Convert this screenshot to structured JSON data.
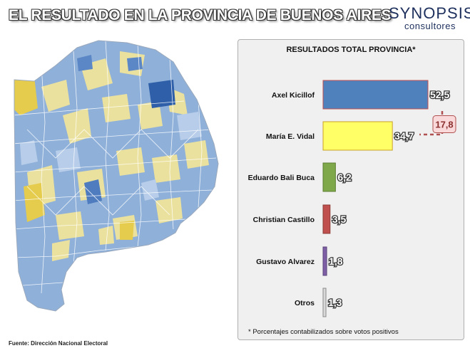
{
  "header": {
    "title": "EL RESULTADO EN LA PROVINCIA DE BUENOS AIRES",
    "logo_main": "SYNOPSIS",
    "logo_sub": "consultores"
  },
  "source": "Fuente: Dirección Nacional Electoral",
  "colors": {
    "kicillof": "#4f81bd",
    "vidal": "#ffff66",
    "bali_buca": "#7fa84a",
    "castillo": "#c0504d",
    "alvarez": "#7e5fa5",
    "otros": "#d9d9d9",
    "map_blue": "#8fb0d9",
    "map_yellow": "#ebe19f",
    "map_outline": "#ffffff",
    "difference_box": "#f9d9d9",
    "difference_line": "#b05050"
  },
  "chart_data": {
    "type": "bar",
    "orientation": "horizontal",
    "title": "RESULTADOS TOTAL PROVINCIA*",
    "categories": [
      "Axel Kicillof",
      "María E. Vidal",
      "Eduardo Bali Buca",
      "Christian Castillo",
      "Gustavo Alvarez",
      "Otros"
    ],
    "values": [
      52.5,
      34.7,
      6.2,
      3.5,
      1.8,
      1.3
    ],
    "value_labels": [
      "52,5",
      "34,7",
      "6,2",
      "3,5",
      "1,8",
      "1,3"
    ],
    "annotation": {
      "label": "17,8",
      "between": [
        "Axel Kicillof",
        "María E. Vidal"
      ]
    },
    "xlim": [
      0,
      52.5
    ],
    "grid": false,
    "legend": "none",
    "footnote": "* Porcentajes contabilizados sobre votos positivos"
  }
}
